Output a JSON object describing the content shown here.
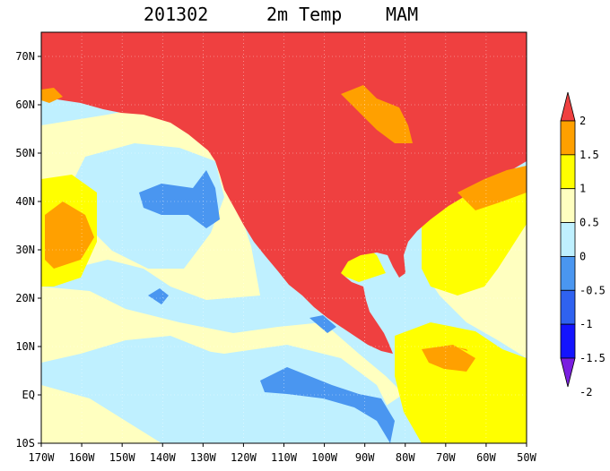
{
  "title": {
    "date": "201302",
    "variable": "2m Temp",
    "season": "MAM"
  },
  "map": {
    "lon_range": [
      -170,
      -50
    ],
    "lat_range": [
      -10,
      75
    ],
    "lon_ticks": [
      {
        "value": -170,
        "label": "170W"
      },
      {
        "value": -160,
        "label": "160W"
      },
      {
        "value": -150,
        "label": "150W"
      },
      {
        "value": -140,
        "label": "140W"
      },
      {
        "value": -130,
        "label": "130W"
      },
      {
        "value": -120,
        "label": "120W"
      },
      {
        "value": -110,
        "label": "110W"
      },
      {
        "value": -100,
        "label": "100W"
      },
      {
        "value": -90,
        "label": "90W"
      },
      {
        "value": -80,
        "label": "80W"
      },
      {
        "value": -70,
        "label": "70W"
      },
      {
        "value": -60,
        "label": "60W"
      },
      {
        "value": -50,
        "label": "50W"
      }
    ],
    "lat_ticks": [
      {
        "value": -10,
        "label": "10S"
      },
      {
        "value": 0,
        "label": "EQ"
      },
      {
        "value": 10,
        "label": "10N"
      },
      {
        "value": 20,
        "label": "20N"
      },
      {
        "value": 30,
        "label": "30N"
      },
      {
        "value": 40,
        "label": "40N"
      },
      {
        "value": 50,
        "label": "50N"
      },
      {
        "value": 60,
        "label": "60N"
      },
      {
        "value": 70,
        "label": "70N"
      }
    ]
  },
  "colorbar": {
    "levels": [
      -2,
      -1.5,
      -1,
      -0.5,
      0,
      0.5,
      1,
      1.5,
      2
    ],
    "labels": [
      "-2",
      "-1.5",
      "-1",
      "-0.5",
      "0",
      "0.5",
      "1",
      "1.5",
      "2"
    ],
    "colors": [
      "#7a1fe0",
      "#1414ff",
      "#2f62f0",
      "#4a96f0",
      "#bff0ff",
      "#ffffc0",
      "#ffff00",
      "#ffa000",
      "#ef4040"
    ]
  },
  "palette": {
    "ocean": "#bff0ff",
    "ocean_warm": "#ffffc0",
    "warm1": "#ffff00",
    "warm2": "#ffa000",
    "hot": "#ef4040",
    "cool1": "#4a96f0"
  }
}
